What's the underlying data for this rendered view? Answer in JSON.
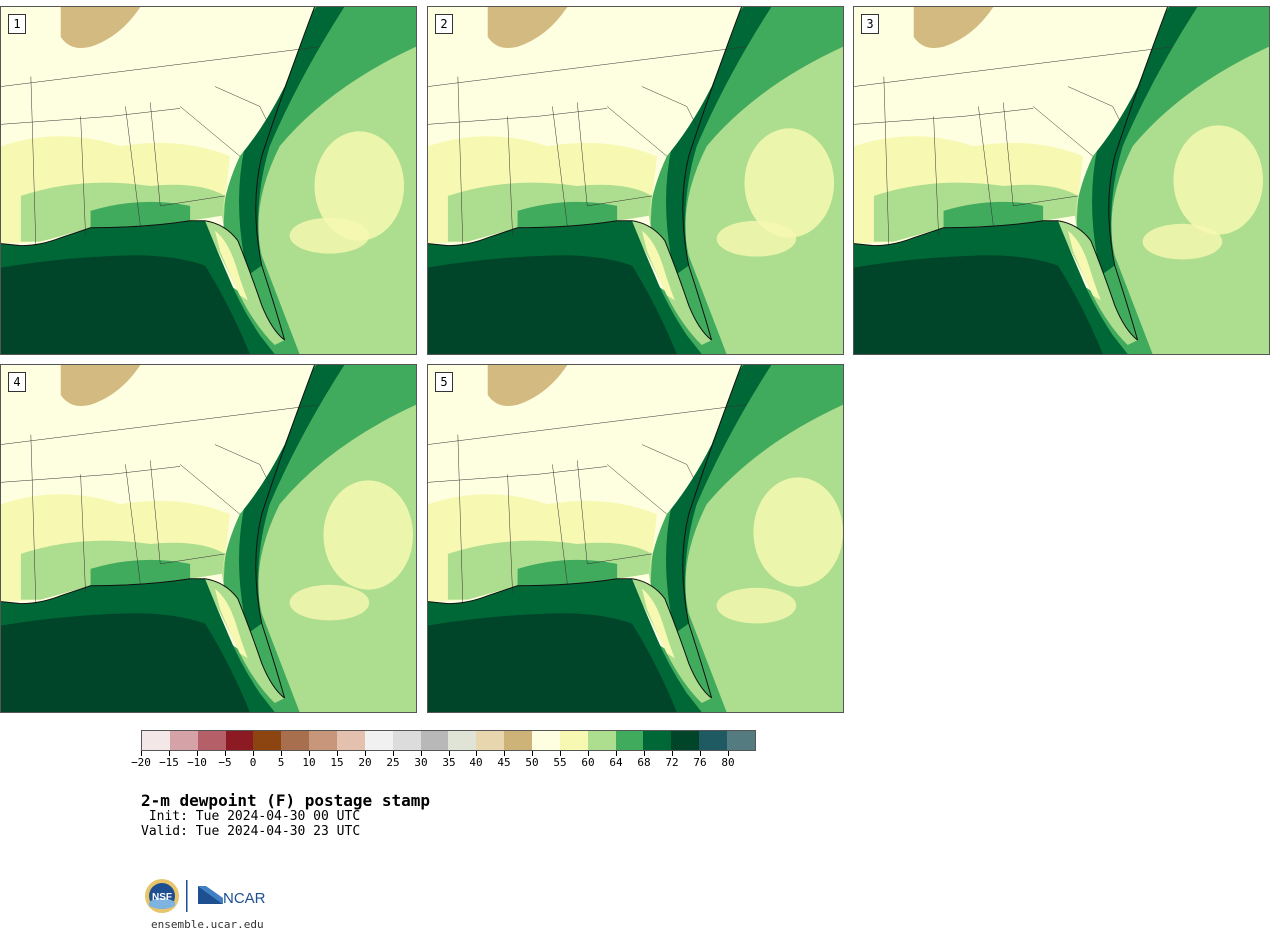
{
  "product": {
    "title": "2-m dewpoint (F) postage stamp",
    "init": " Init: Tue 2024-04-30 00 UTC",
    "valid": "Valid: Tue 2024-04-30 23 UTC"
  },
  "members": [
    {
      "label": "1"
    },
    {
      "label": "2"
    },
    {
      "label": "3"
    },
    {
      "label": "4"
    },
    {
      "label": "5"
    }
  ],
  "colorbar": {
    "colors": [
      "#f3e7e8",
      "#d4a2a7",
      "#b56068",
      "#8b1a22",
      "#8c4510",
      "#a86f4e",
      "#c8967a",
      "#e4c1ae",
      "#f1f1f1",
      "#dcdcdc",
      "#b8b8b8",
      "#e0e4d6",
      "#e8d6ae",
      "#cdb377",
      "#fefee0",
      "#f7f9b2",
      "#addd8e",
      "#41ab5d",
      "#006837",
      "#004529",
      "#1f5a63",
      "#537b80"
    ],
    "tick_labels": [
      "−20",
      "−15",
      "−10",
      "−5",
      "0",
      "5",
      "10",
      "15",
      "20",
      "25",
      "30",
      "35",
      "40",
      "45",
      "50",
      "55",
      "60",
      "64",
      "68",
      "72",
      "76",
      "80"
    ]
  },
  "footer": {
    "website": "ensemble.ucar.edu",
    "logo_left": "NSF",
    "logo_right": "NCAR"
  }
}
